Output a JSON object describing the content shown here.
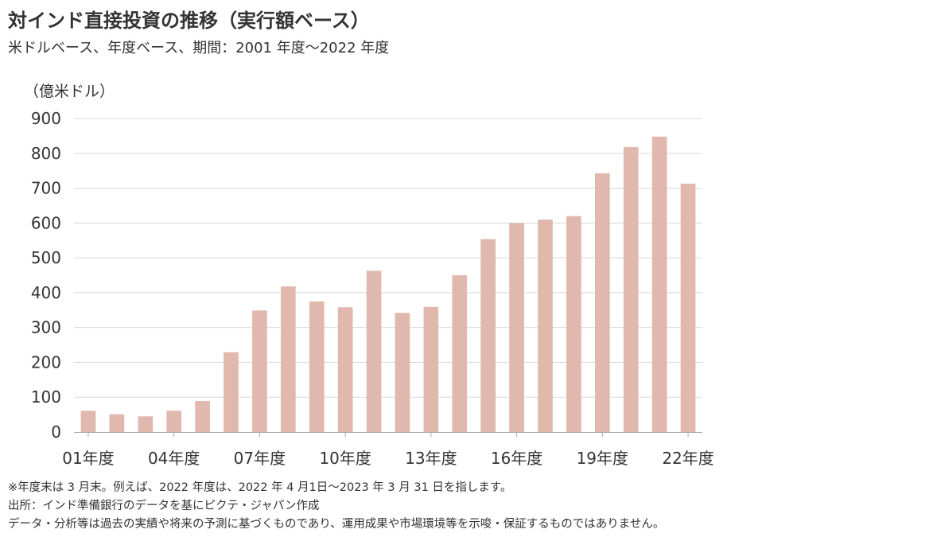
{
  "header": {
    "title": "対インド直接投資の推移（実行額ベース）",
    "subtitle": "米ドルベース、年度ベース、期間：2001 年度～2022 年度"
  },
  "chart_data": {
    "type": "bar",
    "unit_label": "（億米ドル）",
    "categories": [
      "01年度",
      "02年度",
      "03年度",
      "04年度",
      "05年度",
      "06年度",
      "07年度",
      "08年度",
      "09年度",
      "10年度",
      "11年度",
      "12年度",
      "13年度",
      "14年度",
      "15年度",
      "16年度",
      "17年度",
      "18年度",
      "19年度",
      "20年度",
      "21年度",
      "22年度"
    ],
    "tick_labels": [
      "01年度",
      "04年度",
      "07年度",
      "10年度",
      "13年度",
      "16年度",
      "19年度",
      "22年度"
    ],
    "values": [
      61,
      51,
      45,
      61,
      89,
      229,
      349,
      418,
      375,
      358,
      463,
      342,
      359,
      450,
      554,
      600,
      610,
      620,
      743,
      818,
      848,
      713
    ],
    "ylim": [
      0,
      900
    ],
    "yticks": [
      0,
      100,
      200,
      300,
      400,
      500,
      600,
      700,
      800,
      900
    ],
    "grid": true,
    "bar_color": "#e0b8ae"
  },
  "notes": {
    "line1": "※年度末は 3 月末。例えば、2022 年度は、2022 年 4 月1日～2023 年 3 月 31 日を指します。",
    "line2": "出所：インド準備銀行のデータを基にピクテ・ジャパン作成",
    "line3": "データ・分析等は過去の実績や将来の予測に基づくものであり、運用成果や市場環境等を示唆・保証するものではありません。"
  }
}
